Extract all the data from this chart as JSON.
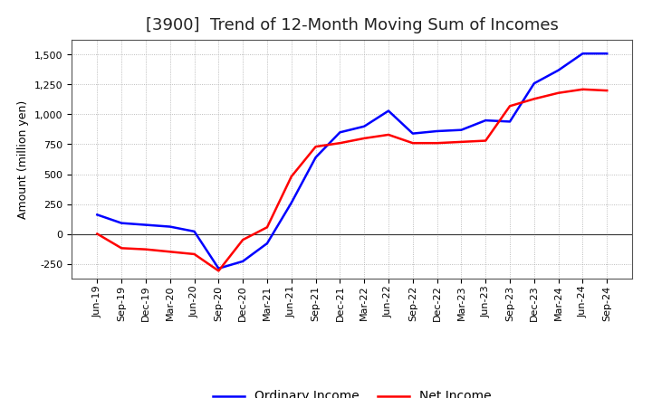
{
  "title": "[3900]  Trend of 12-Month Moving Sum of Incomes",
  "ylabel": "Amount (million yen)",
  "xlabels": [
    "Jun-19",
    "Sep-19",
    "Dec-19",
    "Mar-20",
    "Jun-20",
    "Sep-20",
    "Dec-20",
    "Mar-21",
    "Jun-21",
    "Sep-21",
    "Dec-21",
    "Mar-22",
    "Jun-22",
    "Sep-22",
    "Dec-22",
    "Mar-23",
    "Jun-23",
    "Sep-23",
    "Dec-23",
    "Mar-24",
    "Jun-24",
    "Sep-24"
  ],
  "ordinary_income": [
    160,
    90,
    75,
    60,
    20,
    -290,
    -230,
    -80,
    260,
    640,
    850,
    900,
    1030,
    840,
    860,
    870,
    950,
    940,
    1260,
    1370,
    1510,
    1510
  ],
  "net_income": [
    0,
    -120,
    -130,
    -150,
    -170,
    -310,
    -50,
    55,
    480,
    730,
    760,
    800,
    830,
    760,
    760,
    770,
    780,
    1070,
    1130,
    1180,
    1210,
    1200
  ],
  "ordinary_color": "#0000ff",
  "net_color": "#ff0000",
  "ylim": [
    -375,
    1625
  ],
  "yticks": [
    -250,
    0,
    250,
    500,
    750,
    1000,
    1250,
    1500
  ],
  "background_color": "#ffffff",
  "grid_color": "#aaaaaa",
  "title_fontsize": 13,
  "axis_label_fontsize": 9,
  "tick_fontsize": 8,
  "legend_labels": [
    "Ordinary Income",
    "Net Income"
  ],
  "legend_fontsize": 10
}
